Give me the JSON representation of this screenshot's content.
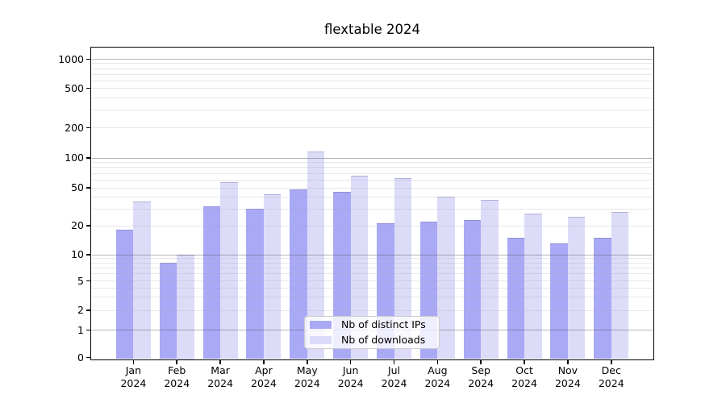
{
  "chart_data": {
    "type": "bar",
    "title": "flextable 2024",
    "x_tick_year": "2024",
    "categories": [
      "Jan",
      "Feb",
      "Mar",
      "Apr",
      "May",
      "Jun",
      "Jul",
      "Aug",
      "Sep",
      "Oct",
      "Nov",
      "Dec"
    ],
    "series": [
      {
        "name": "Nb of distinct IPs",
        "color": "#a9a9f6",
        "values": [
          18,
          8,
          32,
          30,
          48,
          45,
          21,
          22,
          23,
          15,
          13,
          15
        ]
      },
      {
        "name": "Nb of downloads",
        "color": "#dcdcf9",
        "values": [
          36,
          10,
          57,
          43,
          115,
          66,
          63,
          40,
          37,
          27,
          25,
          28
        ]
      }
    ],
    "yscale": "pseudo-log",
    "y_ticks": [
      0,
      1,
      2,
      5,
      10,
      20,
      50,
      100,
      200,
      500,
      1000
    ],
    "ylim": [
      0,
      1400
    ],
    "xlabel": "",
    "ylabel": "",
    "grid": true,
    "legend_position": "lower-center-inside"
  },
  "colors": {
    "background": "#ffffff",
    "spine": "#000000",
    "major_gridline": "#b5b5b5",
    "minor_gridline": "#e8e8e8",
    "text": "#000000",
    "legend_border": "#cccccc",
    "legend_background": "rgba(255,255,255,0.8)"
  }
}
